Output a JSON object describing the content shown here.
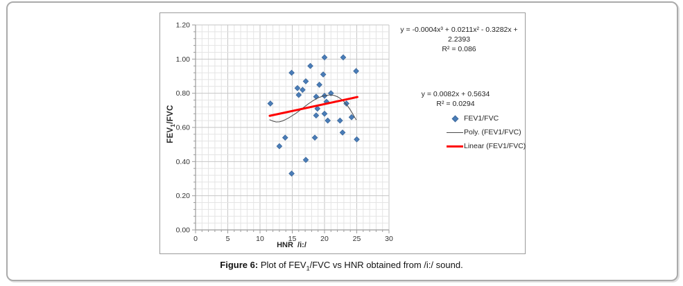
{
  "chart_data": {
    "type": "scatter",
    "title": "",
    "xlabel": "HNR  /i:/",
    "ylabel": "FEV1/FVC",
    "xlim": [
      0,
      30
    ],
    "ylim": [
      0,
      1.2
    ],
    "x_major_ticks": [
      0,
      5,
      10,
      15,
      20,
      25,
      30
    ],
    "y_major_ticks": [
      0.0,
      0.2,
      0.4,
      0.6,
      0.8,
      1.0,
      1.2
    ],
    "x_minor_step": 1,
    "y_minor_step": 0.04,
    "grid": "minor+major",
    "legend_position": "right",
    "series": [
      {
        "name": "FEV1/FVC",
        "kind": "scatter",
        "marker": "diamond",
        "color": "#4a7db8",
        "edge_color": "#3c689b",
        "points": [
          [
            11.6,
            0.74
          ],
          [
            13.0,
            0.49
          ],
          [
            13.9,
            0.54
          ],
          [
            14.9,
            0.33
          ],
          [
            14.9,
            0.92
          ],
          [
            15.8,
            0.83
          ],
          [
            16.0,
            0.79
          ],
          [
            16.6,
            0.82
          ],
          [
            17.1,
            0.41
          ],
          [
            17.1,
            0.87
          ],
          [
            17.8,
            0.96
          ],
          [
            18.5,
            0.54
          ],
          [
            18.7,
            0.67
          ],
          [
            18.7,
            0.78
          ],
          [
            18.9,
            0.71
          ],
          [
            19.2,
            0.85
          ],
          [
            19.8,
            0.91
          ],
          [
            20.0,
            0.68
          ],
          [
            20.0,
            0.785
          ],
          [
            20.0,
            1.01
          ],
          [
            20.3,
            0.75
          ],
          [
            20.5,
            0.64
          ],
          [
            21.0,
            0.8
          ],
          [
            22.4,
            0.64
          ],
          [
            22.8,
            0.57
          ],
          [
            22.9,
            1.01
          ],
          [
            23.4,
            0.74
          ],
          [
            24.2,
            0.66
          ],
          [
            24.9,
            0.93
          ],
          [
            25.0,
            0.53
          ]
        ]
      },
      {
        "name": "Poly. (FEV1/FVC)",
        "kind": "line",
        "color": "#4a4a4a",
        "width": 1,
        "points": [
          [
            11.5,
            0.645
          ],
          [
            12.0,
            0.637
          ],
          [
            12.5,
            0.632
          ],
          [
            13.0,
            0.633
          ],
          [
            13.5,
            0.638
          ],
          [
            14.0,
            0.647
          ],
          [
            14.5,
            0.657
          ],
          [
            15.0,
            0.669
          ],
          [
            15.5,
            0.681
          ],
          [
            16.0,
            0.695
          ],
          [
            16.5,
            0.709
          ],
          [
            17.0,
            0.724
          ],
          [
            17.5,
            0.738
          ],
          [
            18.0,
            0.751
          ],
          [
            18.5,
            0.763
          ],
          [
            19.0,
            0.773
          ],
          [
            19.5,
            0.78
          ],
          [
            20.0,
            0.786
          ],
          [
            20.5,
            0.789
          ],
          [
            21.0,
            0.79
          ],
          [
            21.5,
            0.787
          ],
          [
            22.0,
            0.78
          ],
          [
            22.5,
            0.768
          ],
          [
            23.0,
            0.752
          ],
          [
            23.5,
            0.73
          ],
          [
            24.0,
            0.703
          ],
          [
            24.5,
            0.671
          ],
          [
            24.9,
            0.645
          ]
        ]
      },
      {
        "name": "Linear (FEV1/FVC)",
        "kind": "line",
        "color": "#fe0000",
        "width": 3,
        "points": [
          [
            11.5,
            0.668
          ],
          [
            25.1,
            0.778
          ]
        ]
      }
    ]
  },
  "axis": {
    "y_title": {
      "pre": "FEV",
      "sub": "1",
      "post": "/FVC"
    },
    "x_title": "HNR  /i:/"
  },
  "annotations": {
    "poly_eq": "y = -0.0004x³ + 0.0211x² - 0.3282x + 2.2393",
    "poly_r2": "R² = 0.086",
    "linear_eq": "y = 0.0082x + 0.5634",
    "linear_r2": "R² = 0.0294"
  },
  "legend": {
    "items": [
      {
        "label": "FEV1/FVC"
      },
      {
        "label": "Poly. (FEV1/FVC)"
      },
      {
        "label": "Linear (FEV1/FVC)"
      }
    ]
  },
  "caption": {
    "label": "Figure 6:",
    "pre": " Plot of FEV",
    "sub": "1",
    "post": "/FVC vs HNR obtained from /i:/ sound."
  }
}
